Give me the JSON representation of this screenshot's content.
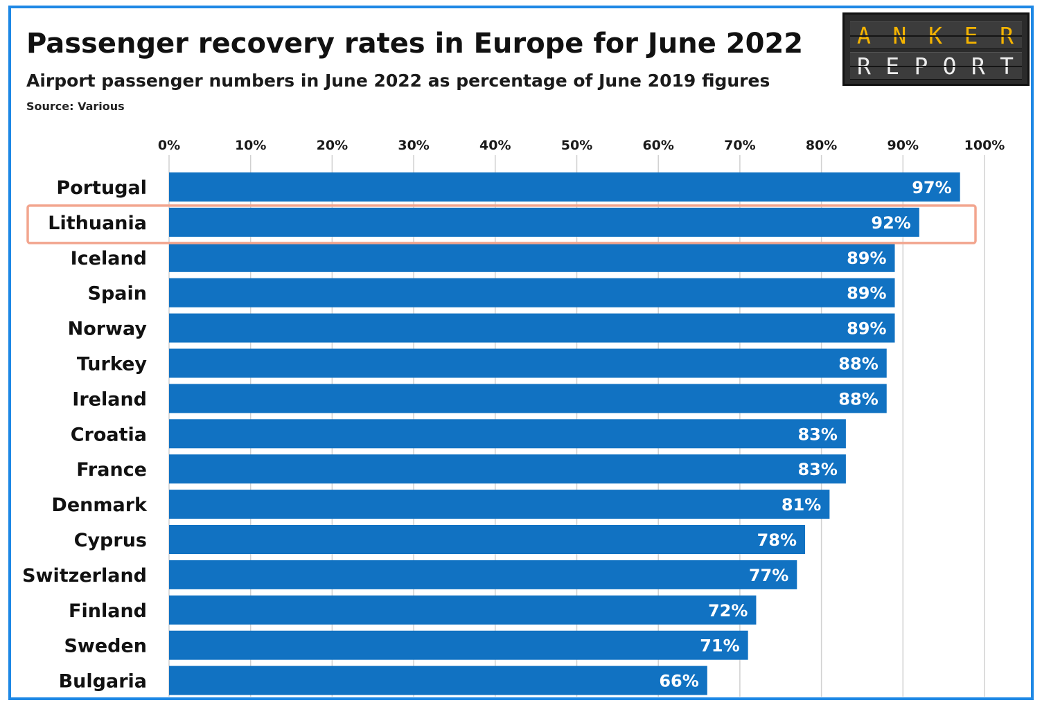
{
  "header": {
    "title": "Passenger recovery rates in Europe for June 2022",
    "subtitle": "Airport passenger numbers in June 2022 as percentage of June 2019 figures",
    "source": "Source: Various"
  },
  "logo": {
    "line1": "ANKER",
    "line2": "REPORT"
  },
  "colors": {
    "frame": "#1e88e5",
    "bar": "#1172c2",
    "highlight": "#f2a58e",
    "grid": "#d0d0d0",
    "logo_accent": "#f5b400"
  },
  "chart_data": {
    "type": "bar",
    "orientation": "horizontal",
    "xlim": [
      0,
      100
    ],
    "xticks": [
      0,
      10,
      20,
      30,
      40,
      50,
      60,
      70,
      80,
      90,
      100
    ],
    "xtick_labels": [
      "0%",
      "10%",
      "20%",
      "30%",
      "40%",
      "50%",
      "60%",
      "70%",
      "80%",
      "90%",
      "100%"
    ],
    "categories": [
      "Portugal",
      "Lithuania",
      "Iceland",
      "Spain",
      "Norway",
      "Turkey",
      "Ireland",
      "Croatia",
      "France",
      "Denmark",
      "Cyprus",
      "Switzerland",
      "Finland",
      "Sweden",
      "Bulgaria"
    ],
    "values": [
      97,
      92,
      89,
      89,
      89,
      88,
      88,
      83,
      83,
      81,
      78,
      77,
      72,
      71,
      66
    ],
    "data_labels": [
      "97%",
      "92%",
      "89%",
      "89%",
      "89%",
      "88%",
      "88%",
      "83%",
      "83%",
      "81%",
      "78%",
      "77%",
      "72%",
      "71%",
      "66%"
    ],
    "highlighted_category": "Lithuania",
    "grid": true,
    "legend": "none"
  }
}
